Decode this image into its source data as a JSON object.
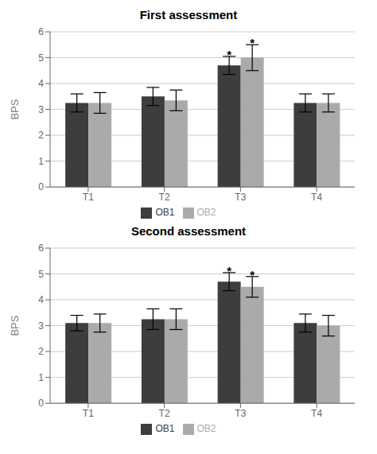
{
  "chart_data": [
    {
      "type": "bar",
      "title": "First assessment",
      "categories": [
        "T1",
        "T2",
        "T3",
        "T4"
      ],
      "ylabel": "BPS",
      "ylim": [
        0,
        6
      ],
      "yticks": [
        0,
        1,
        2,
        3,
        4,
        5,
        6
      ],
      "grid": true,
      "legend": "bottom",
      "series": [
        {
          "name": "OB1",
          "color": "#3d3d3d",
          "values": [
            3.25,
            3.5,
            4.7,
            3.25
          ],
          "errors": [
            0.35,
            0.35,
            0.35,
            0.35
          ],
          "annotations": [
            null,
            null,
            "*",
            null
          ]
        },
        {
          "name": "OB2",
          "color": "#aaaaaa",
          "values": [
            3.25,
            3.35,
            5.0,
            3.25
          ],
          "errors": [
            0.4,
            0.4,
            0.5,
            0.35
          ],
          "annotations": [
            null,
            null,
            "*",
            null
          ]
        }
      ]
    },
    {
      "type": "bar",
      "title": "Second assessment",
      "categories": [
        "T1",
        "T2",
        "T3",
        "T4"
      ],
      "ylabel": "BPS",
      "ylim": [
        0,
        6
      ],
      "yticks": [
        0,
        1,
        2,
        3,
        4,
        5,
        6
      ],
      "grid": true,
      "legend": "bottom",
      "series": [
        {
          "name": "OB1",
          "color": "#3d3d3d",
          "values": [
            3.1,
            3.25,
            4.7,
            3.1
          ],
          "errors": [
            0.3,
            0.4,
            0.35,
            0.35
          ],
          "annotations": [
            null,
            null,
            "*",
            null
          ]
        },
        {
          "name": "OB2",
          "color": "#aaaaaa",
          "values": [
            3.1,
            3.25,
            4.5,
            3.0
          ],
          "errors": [
            0.35,
            0.4,
            0.4,
            0.4
          ],
          "annotations": [
            null,
            null,
            "*",
            null
          ]
        }
      ]
    }
  ]
}
